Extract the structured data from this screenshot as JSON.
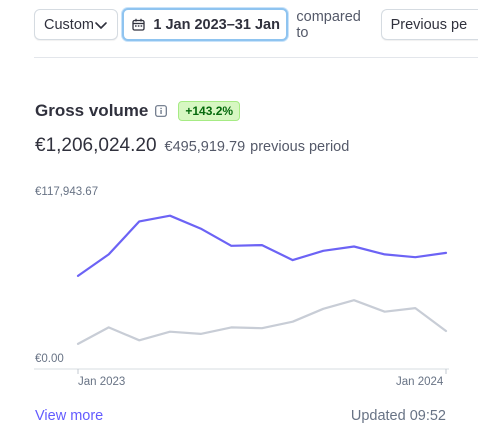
{
  "toolbar": {
    "range_label": "Custom",
    "date_range": "1 Jan 2023–31 Jan",
    "compared_label": "compared to",
    "compare_value": "Previous pe"
  },
  "widget": {
    "title": "Gross volume",
    "badge": "+143.2%",
    "amount": "€1,206,024.20",
    "previous_amount": "€495,919.79",
    "previous_label": "previous period",
    "view_more": "View more",
    "updated": "Updated 09:52"
  },
  "colors": {
    "current": "#6c63f5",
    "previous": "#c8cdd6",
    "badge_bg": "#d7f7c2",
    "badge_text": "#05690d",
    "link": "#635bff"
  },
  "chart_data": {
    "type": "line",
    "y_tick_labels": [
      "€117,943.67",
      "€0.00"
    ],
    "x_tick_labels": [
      "Jan 2023",
      "Jan 2024"
    ],
    "ylim": [
      0,
      117943.67
    ],
    "series": [
      {
        "values": [
          65000,
          80000,
          103000,
          107000,
          98000,
          86000,
          86500,
          76000,
          82500,
          85500,
          80000,
          78000,
          81000
        ]
      },
      {
        "values": [
          17500,
          29000,
          20000,
          26000,
          24500,
          29000,
          28500,
          33000,
          42000,
          48000,
          40000,
          42500,
          26500
        ]
      }
    ],
    "grid": false,
    "legend": "none"
  }
}
